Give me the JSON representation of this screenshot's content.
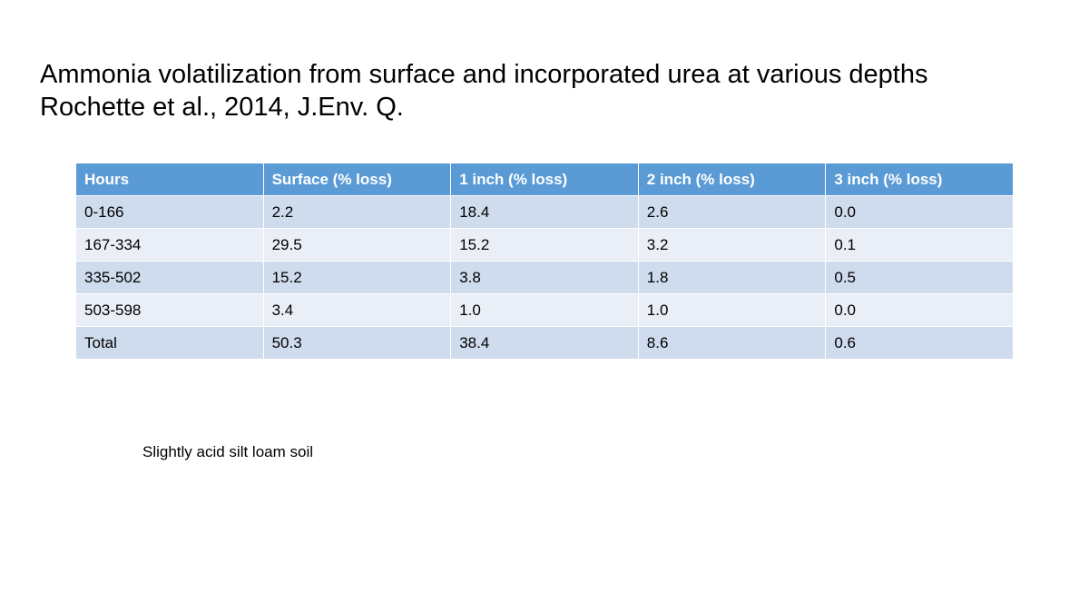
{
  "title": {
    "line1": "Ammonia volatilization from surface and incorporated urea at various depths",
    "line2": "Rochette et al., 2014, J.Env. Q."
  },
  "table": {
    "headers": [
      "Hours",
      "Surface (% loss)",
      "1 inch (% loss)",
      "2 inch (% loss)",
      "3 inch (% loss)"
    ],
    "rows": [
      [
        "0-166",
        "2.2",
        "18.4",
        "2.6",
        "0.0"
      ],
      [
        "167-334",
        "29.5",
        "15.2",
        "3.2",
        "0.1"
      ],
      [
        "335-502",
        "15.2",
        "3.8",
        "1.8",
        "0.5"
      ],
      [
        "503-598",
        "3.4",
        "1.0",
        "1.0",
        "0.0"
      ],
      [
        "Total",
        "50.3",
        "38.4",
        "8.6",
        "0.6"
      ]
    ]
  },
  "note": "Slightly acid silt loam soil",
  "colors": {
    "header_bg": "#5b9bd5",
    "row_odd_bg": "#cfdcee",
    "row_even_bg": "#e9eef7"
  }
}
